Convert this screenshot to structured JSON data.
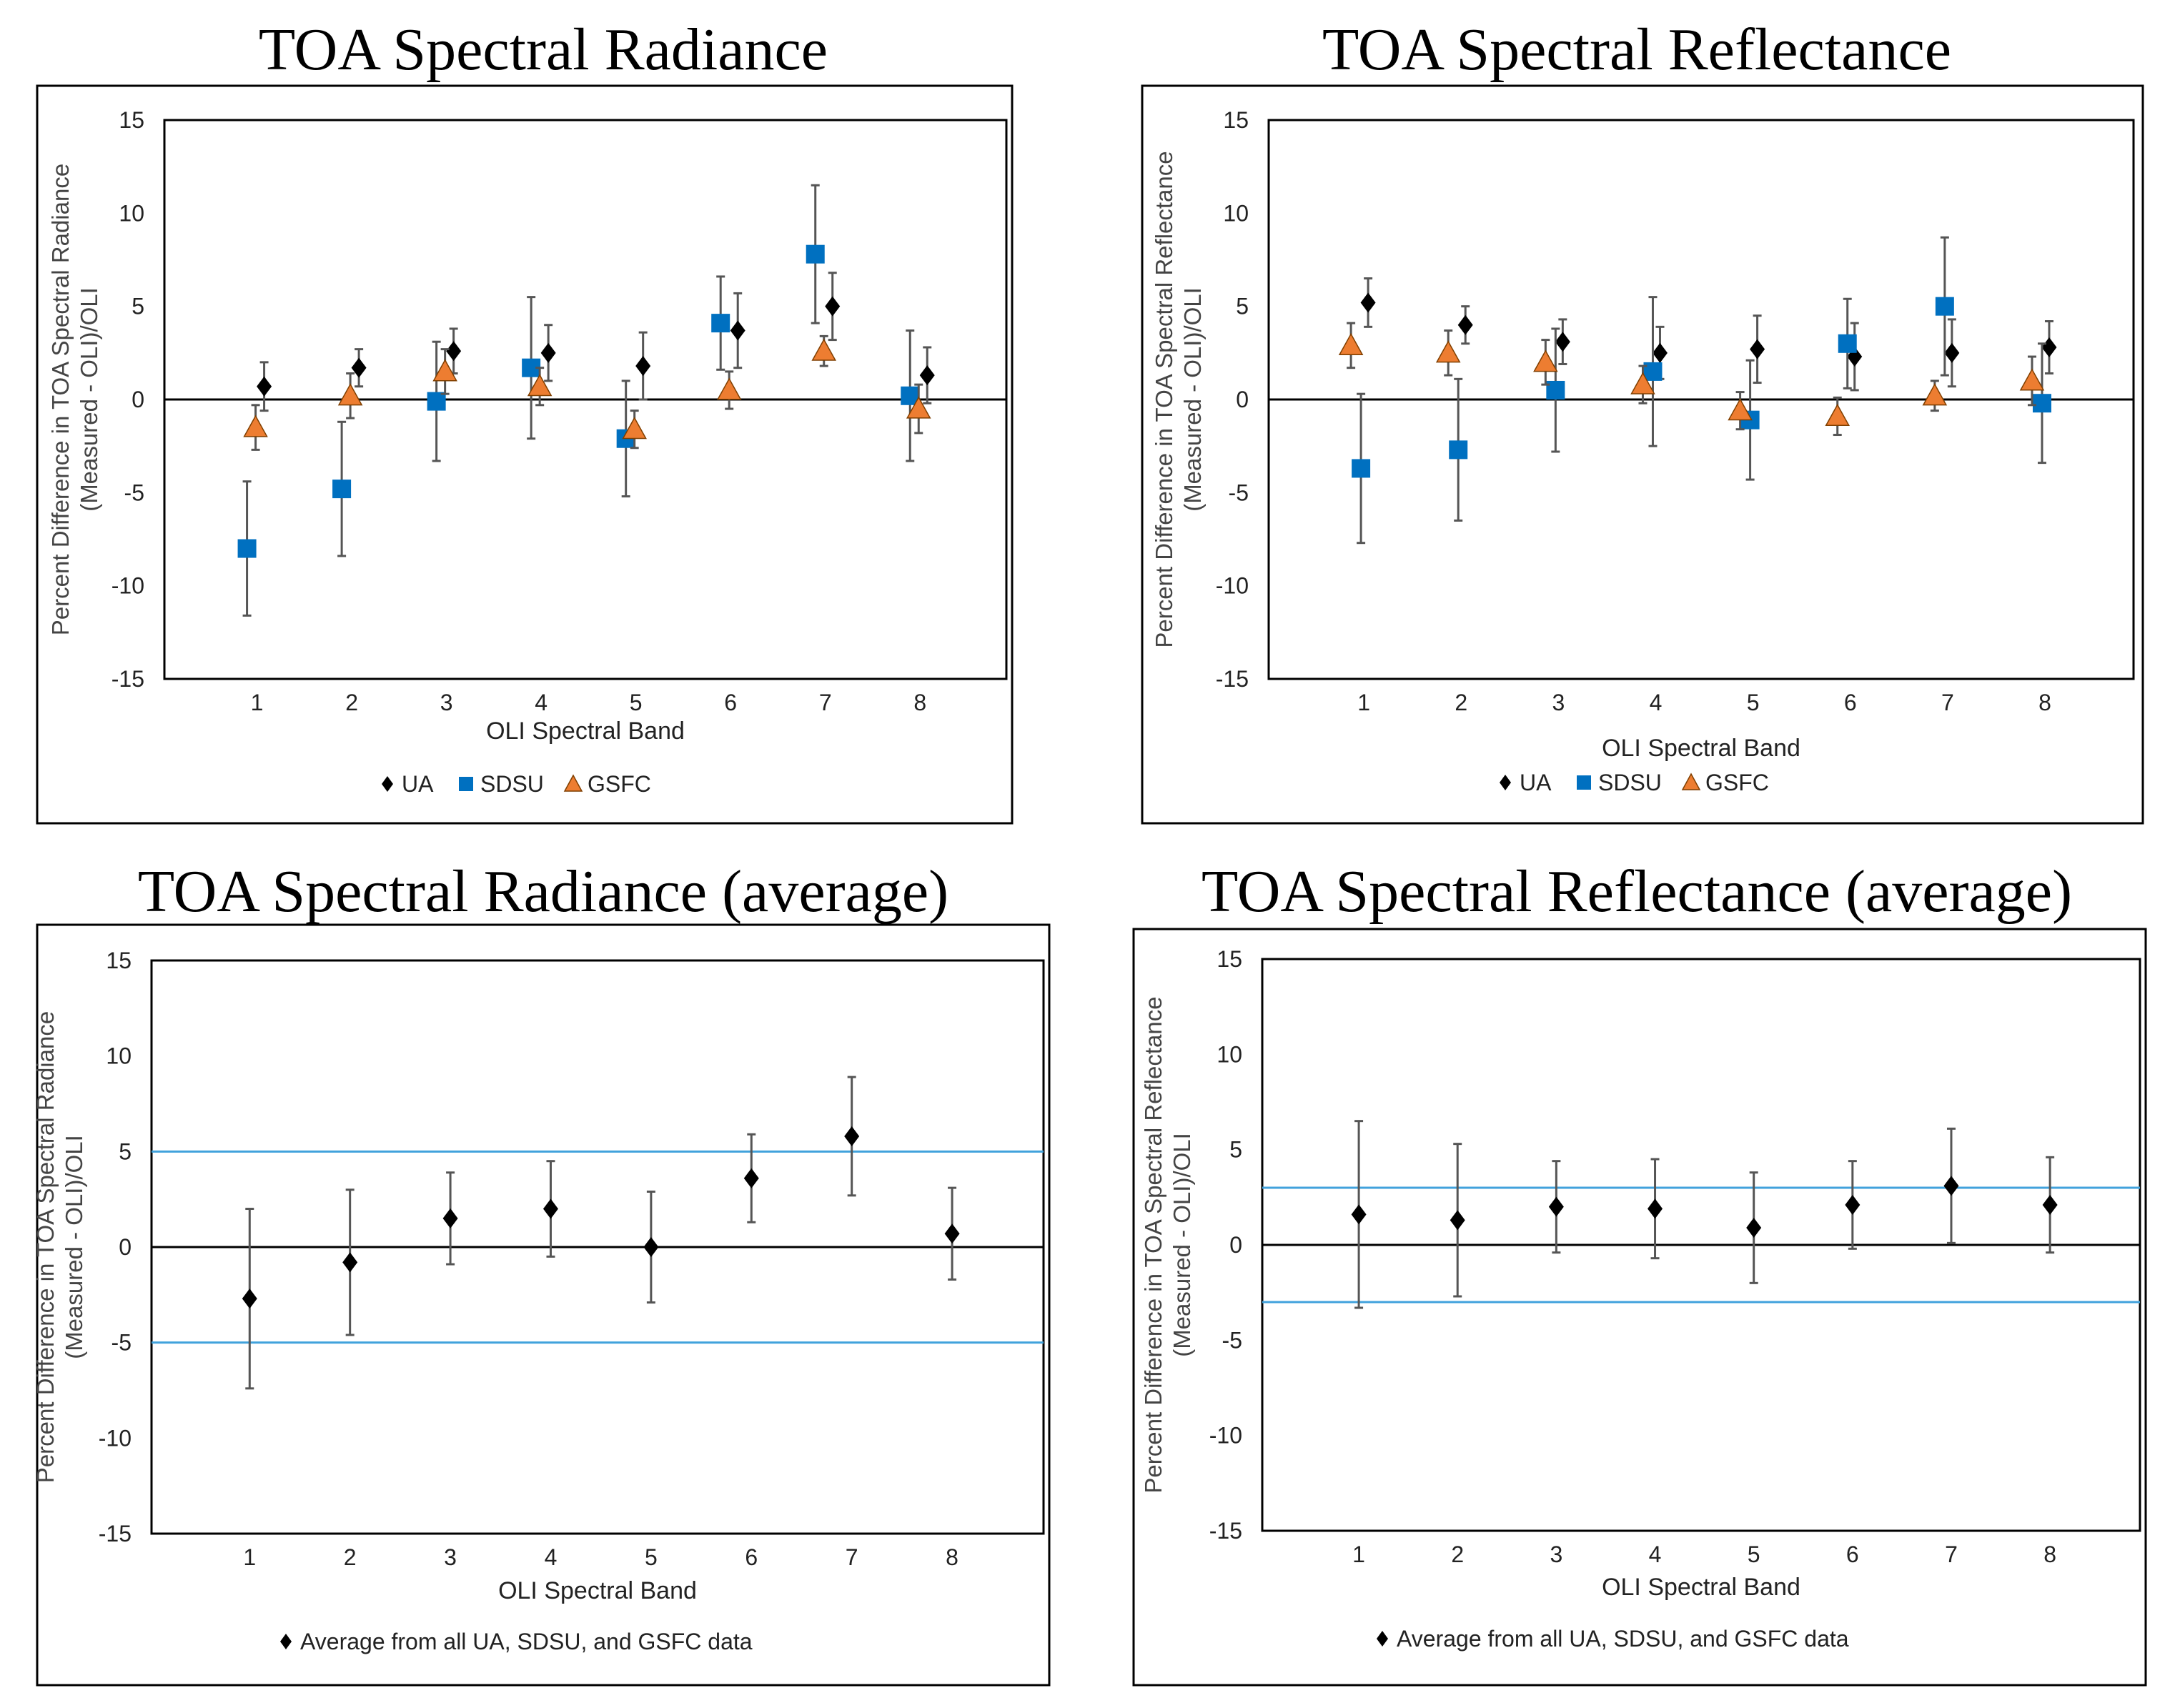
{
  "charts": [
    {
      "title": "TOA Spectral Radiance",
      "ylabel_lines": [
        "Percent Difference in TOA Spectral Radiance",
        "(Measured - OLI)/OLI"
      ],
      "xlabel": "OLI Spectral Band",
      "legend": [
        "UA",
        "SDSU",
        "GSFC"
      ]
    },
    {
      "title": "TOA Spectral Reflectance",
      "ylabel_lines": [
        "Percent Difference in TOA Spectral Reflectance",
        "(Measured - OLI)/OLI"
      ],
      "xlabel": "OLI Spectral Band",
      "legend": [
        "UA",
        "SDSU",
        "GSFC"
      ]
    },
    {
      "title": "TOA Spectral Radiance (average)",
      "ylabel_lines": [
        "Percent Difference in TOA Spectral Radiance",
        "(Measured - OLI)/OLI"
      ],
      "xlabel": "OLI Spectral Band",
      "legend": [
        "Average from all UA, SDSU, and GSFC data"
      ]
    },
    {
      "title": "TOA Spectral Reflectance (average)",
      "ylabel_lines": [
        "Percent Difference in TOA Spectral Reflectance",
        "(Measured - OLI)/OLI"
      ],
      "xlabel": "OLI Spectral Band",
      "legend": [
        "Average from all UA, SDSU, and GSFC data"
      ]
    }
  ],
  "chart_data": [
    {
      "type": "scatter",
      "title": "TOA Spectral Radiance",
      "xlabel": "OLI Spectral Band",
      "ylabel": "Percent Difference in TOA Spectral Radiance (Measured - OLI)/OLI",
      "categories": [
        "1",
        "2",
        "3",
        "4",
        "5",
        "6",
        "7",
        "8"
      ],
      "ylim": [
        -15,
        15
      ],
      "yticks": [
        15,
        10,
        5,
        0,
        -5,
        -10,
        -15
      ],
      "legend_position": "bottom",
      "series": [
        {
          "name": "UA",
          "marker": "diamond",
          "color": "#000000",
          "values": [
            0.7,
            1.7,
            2.6,
            2.5,
            1.8,
            3.7,
            5.0,
            1.3
          ],
          "error": [
            1.3,
            1.0,
            1.2,
            1.5,
            1.8,
            2.0,
            1.8,
            1.5
          ]
        },
        {
          "name": "SDSU",
          "marker": "square",
          "color": "#0070C0",
          "values": [
            -8.0,
            -4.8,
            -0.1,
            1.7,
            -2.1,
            4.1,
            7.8,
            0.2
          ],
          "error": [
            3.6,
            3.6,
            3.2,
            3.8,
            3.1,
            2.5,
            3.7,
            3.5
          ]
        },
        {
          "name": "GSFC",
          "marker": "triangle",
          "color": "#ED7D31",
          "values": [
            -1.5,
            0.2,
            1.5,
            0.7,
            -1.6,
            0.5,
            2.6,
            -0.5
          ],
          "error": [
            1.2,
            1.2,
            1.2,
            1.0,
            1.0,
            1.0,
            0.8,
            1.3
          ]
        }
      ]
    },
    {
      "type": "scatter",
      "title": "TOA Spectral Reflectance",
      "xlabel": "OLI Spectral Band",
      "ylabel": "Percent Difference in TOA Spectral Reflectance (Measured - OLI)/OLI",
      "categories": [
        "1",
        "2",
        "3",
        "4",
        "5",
        "6",
        "7",
        "8"
      ],
      "ylim": [
        -15,
        15
      ],
      "yticks": [
        15,
        10,
        5,
        0,
        -5,
        -10,
        -15
      ],
      "legend_position": "bottom",
      "series": [
        {
          "name": "UA",
          "marker": "diamond",
          "color": "#000000",
          "values": [
            5.2,
            4.0,
            3.1,
            2.5,
            2.7,
            2.3,
            2.5,
            2.8
          ],
          "error": [
            1.3,
            1.0,
            1.2,
            1.4,
            1.8,
            1.8,
            1.8,
            1.4
          ]
        },
        {
          "name": "SDSU",
          "marker": "square",
          "color": "#0070C0",
          "values": [
            -3.7,
            -2.7,
            0.5,
            1.5,
            -1.1,
            3.0,
            5.0,
            -0.2
          ],
          "error": [
            4.0,
            3.8,
            3.3,
            4.0,
            3.2,
            2.4,
            3.7,
            3.2
          ]
        },
        {
          "name": "GSFC",
          "marker": "triangle",
          "color": "#ED7D31",
          "values": [
            2.9,
            2.5,
            2.0,
            0.8,
            -0.6,
            -0.9,
            0.2,
            1.0
          ],
          "error": [
            1.2,
            1.2,
            1.2,
            1.0,
            1.0,
            1.0,
            0.8,
            1.3
          ]
        }
      ]
    },
    {
      "type": "scatter",
      "title": "TOA Spectral Radiance (average)",
      "xlabel": "OLI Spectral Band",
      "ylabel": "Percent Difference in TOA Spectral Radiance (Measured - OLI)/OLI",
      "categories": [
        "1",
        "2",
        "3",
        "4",
        "5",
        "6",
        "7",
        "8"
      ],
      "ylim": [
        -15,
        15
      ],
      "yticks": [
        15,
        10,
        5,
        0,
        -5,
        -10,
        -15
      ],
      "reference_lines": [
        5,
        -5
      ],
      "legend_position": "bottom",
      "series": [
        {
          "name": "Average from all UA, SDSU, and GSFC data",
          "marker": "diamond",
          "color": "#000000",
          "values": [
            -2.7,
            -0.8,
            1.5,
            2.0,
            0.0,
            3.6,
            5.8,
            0.7
          ],
          "error": [
            4.7,
            3.8,
            2.4,
            2.5,
            2.9,
            2.3,
            3.1,
            2.4
          ]
        }
      ]
    },
    {
      "type": "scatter",
      "title": "TOA Spectral Reflectance (average)",
      "xlabel": "OLI Spectral Band",
      "ylabel": "Percent Difference in TOA Spectral Reflectance (Measured - OLI)/OLI",
      "categories": [
        "1",
        "2",
        "3",
        "4",
        "5",
        "6",
        "7",
        "8"
      ],
      "ylim": [
        -15,
        15
      ],
      "yticks": [
        15,
        10,
        5,
        0,
        -5,
        -10,
        -15
      ],
      "reference_lines": [
        3,
        -3
      ],
      "legend_position": "bottom",
      "series": [
        {
          "name": "Average from all UA, SDSU, and GSFC data",
          "marker": "diamond",
          "color": "#000000",
          "values": [
            1.6,
            1.3,
            2.0,
            1.9,
            0.9,
            2.1,
            3.1,
            2.1
          ],
          "error": [
            4.9,
            4.0,
            2.4,
            2.6,
            2.9,
            2.3,
            3.0,
            2.5
          ]
        }
      ]
    }
  ]
}
